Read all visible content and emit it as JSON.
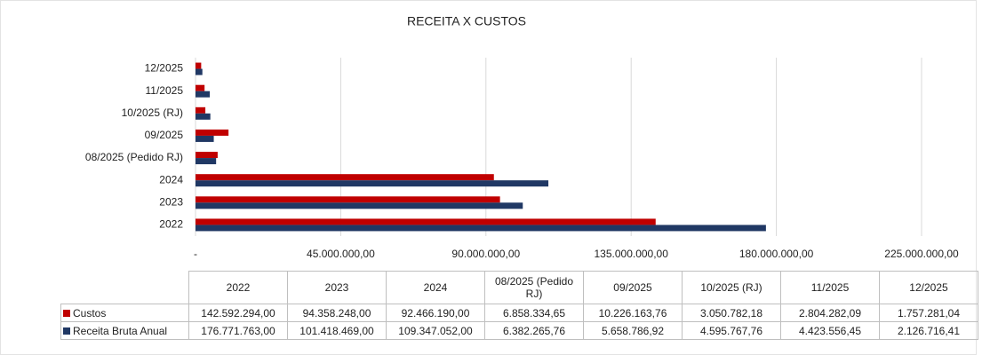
{
  "chart_data": {
    "type": "bar",
    "orientation": "horizontal",
    "title": "RECEITA X CUSTOS",
    "categories": [
      "2022",
      "2023",
      "2024",
      "08/2025 (Pedido RJ)",
      "09/2025",
      "10/2025 (RJ)",
      "11/2025",
      "12/2025"
    ],
    "series": [
      {
        "name": "Custos",
        "color": "#c00000",
        "values": [
          142592294.0,
          94358248.0,
          92466190.0,
          6858334.65,
          10226163.76,
          3050782.18,
          2804282.09,
          1757281.04
        ],
        "value_labels": [
          "142.592.294,00",
          "94.358.248,00",
          "92.466.190,00",
          "6.858.334,65",
          "10.226.163,76",
          "3.050.782,18",
          "2.804.282,09",
          "1.757.281,04"
        ]
      },
      {
        "name": "Receita Bruta Anual",
        "color": "#203864",
        "values": [
          176771763.0,
          101418469.0,
          109347052.0,
          6382265.76,
          5658786.92,
          4595767.76,
          4423556.45,
          2126716.41
        ],
        "value_labels": [
          "176.771.763,00",
          "101.418.469,00",
          "109.347.052,00",
          "6.382.265,76",
          "5.658.786,92",
          "4.595.767,76",
          "4.423.556,45",
          "2.126.716,41"
        ]
      }
    ],
    "xlim": [
      0,
      225000000
    ],
    "xticks": [
      {
        "value": 0,
        "label": "-"
      },
      {
        "value": 45000000,
        "label": "45.000.000,00"
      },
      {
        "value": 90000000,
        "label": "90.000.000,00"
      },
      {
        "value": 135000000,
        "label": "135.000.000,00"
      },
      {
        "value": 180000000,
        "label": "180.000.000,00"
      },
      {
        "value": 225000000,
        "label": "225.000.000,00"
      }
    ],
    "grid": true
  }
}
